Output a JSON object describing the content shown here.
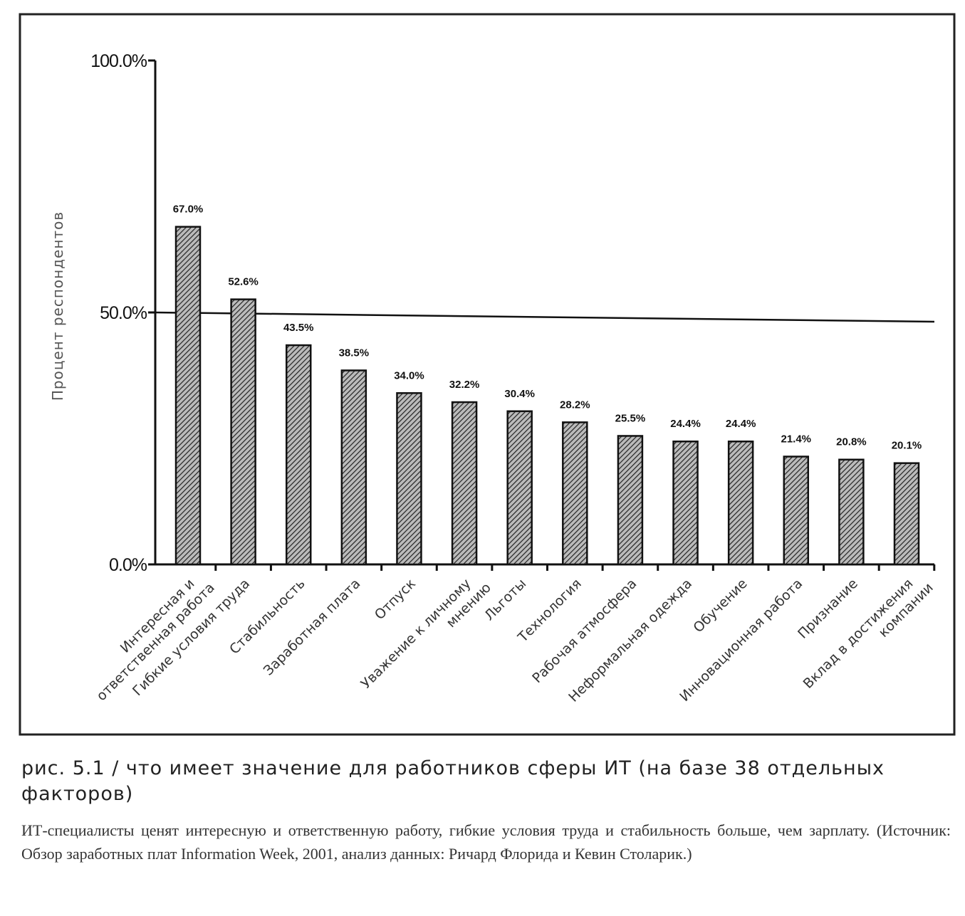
{
  "chart_data": {
    "type": "bar",
    "title": "",
    "ylabel": "Процент респондентов",
    "xlabel": "",
    "ylim": [
      0,
      100
    ],
    "yticks": [
      "0.0%",
      "50.0%",
      "100.0%"
    ],
    "reference_line": 50,
    "grid": false,
    "bar_pattern": "diagonal hatch",
    "bar_color": "#333333",
    "categories": [
      [
        "Интересная и",
        "ответственная работа"
      ],
      [
        "Гибкие условия труда"
      ],
      [
        "Стабильность"
      ],
      [
        "Заработная плата"
      ],
      [
        "Отпуск"
      ],
      [
        "Уважение к личному",
        "мнению"
      ],
      [
        "Льготы"
      ],
      [
        "Технология"
      ],
      [
        "Рабочая атмосфера"
      ],
      [
        "Неформальная одежда"
      ],
      [
        "Обучение"
      ],
      [
        "Инновационная работа"
      ],
      [
        "Признание"
      ],
      [
        "Вклад в достижения",
        "компании"
      ]
    ],
    "values": [
      67.0,
      52.6,
      43.5,
      38.5,
      34.0,
      32.2,
      30.4,
      28.2,
      25.5,
      24.4,
      24.4,
      21.4,
      20.8,
      20.1
    ],
    "data_labels": [
      "67.0%",
      "52.6%",
      "43.5%",
      "38.5%",
      "34.0%",
      "32.2%",
      "30.4%",
      "28.2%",
      "25.5%",
      "24.4%",
      "24.4%",
      "21.4%",
      "20.8%",
      "20.1%"
    ]
  },
  "caption": {
    "title": "рис. 5.1 / что имеет значение для работников сферы ИТ (на базе 38 отдельных факторов)",
    "body": "ИТ-специалисты ценят интересную и ответственную работу, гибкие условия труда и стабильность больше, чем зарплату. (Источник: Обзор заработных плат Information Week, 2001, анализ данных: Ричард Флорида и Кевин Столарик.)"
  }
}
